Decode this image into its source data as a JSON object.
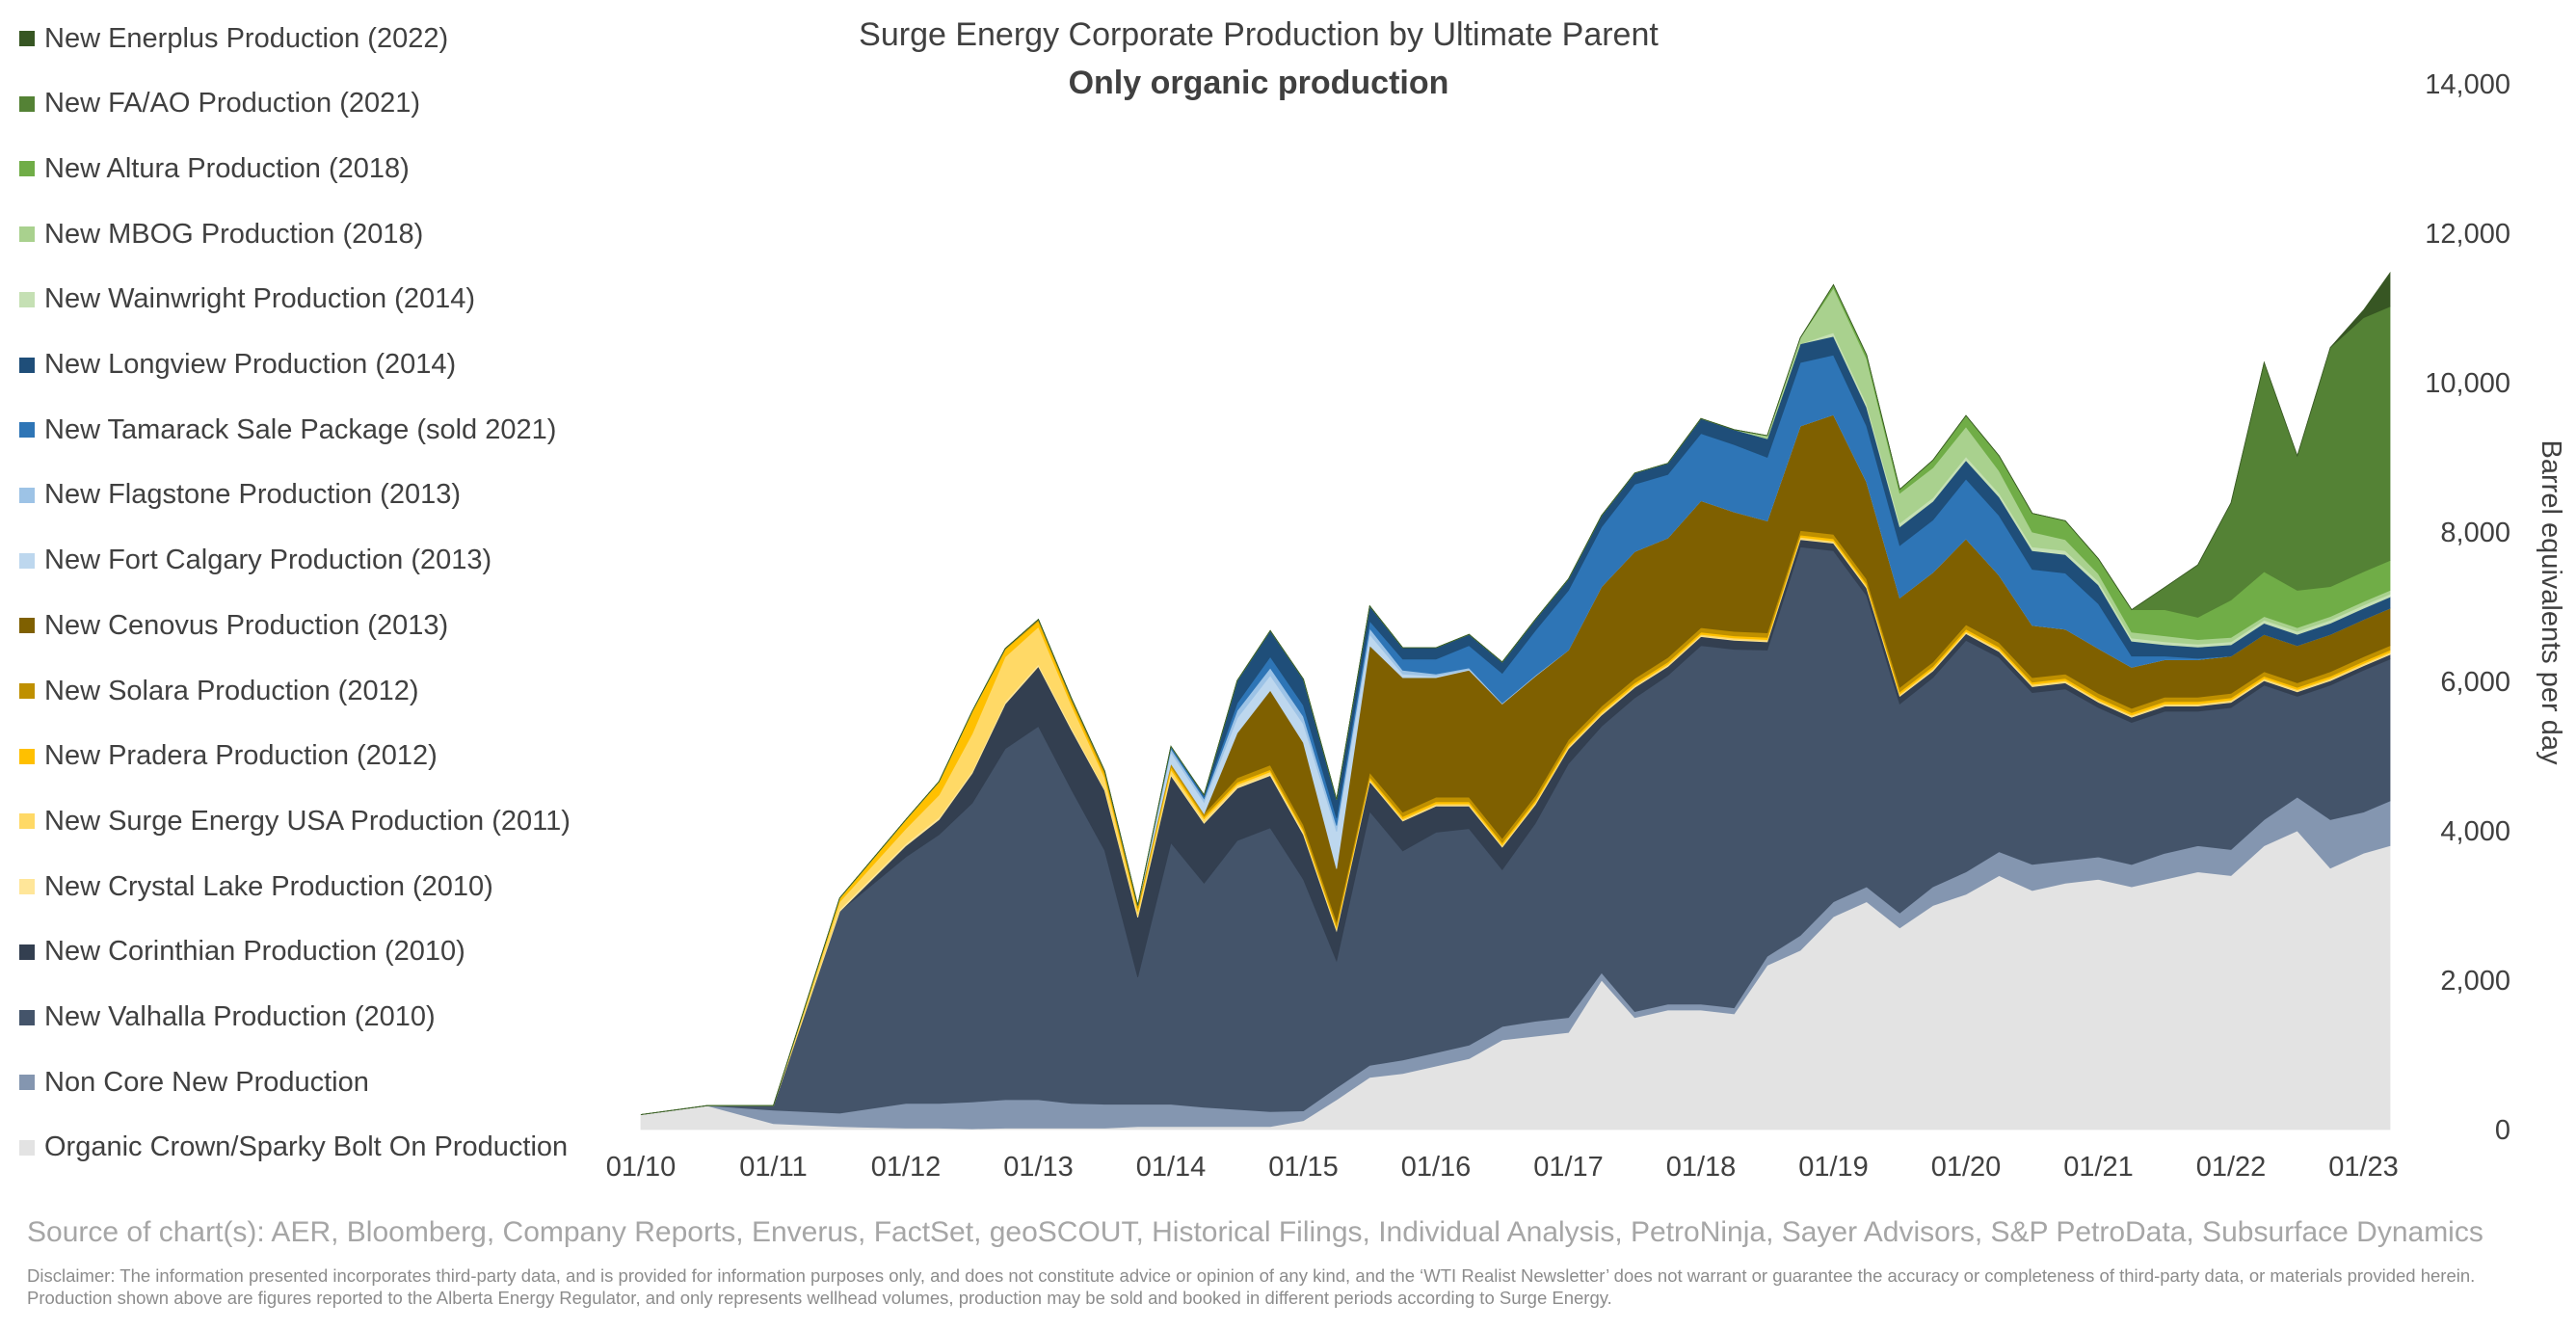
{
  "chart_data": {
    "type": "area",
    "stacked": true,
    "title": "Surge Energy Corporate Production by Ultimate Parent",
    "subtitle": "Only organic production",
    "ylabel": "Barrel equivalents per day",
    "ylim": [
      0,
      14000
    ],
    "yticks": [
      "0",
      "2,000",
      "4,000",
      "6,000",
      "8,000",
      "10,000",
      "12,000",
      "14,000"
    ],
    "yaxis_position": "right",
    "xlim": [
      0,
      13.2
    ],
    "x_categories": [
      "01/10",
      "01/11",
      "01/12",
      "01/13",
      "01/14",
      "01/15",
      "01/16",
      "01/17",
      "01/18",
      "01/19",
      "01/20",
      "01/21",
      "01/22",
      "01/23"
    ],
    "legend_position": "left",
    "x": [
      0,
      0.5,
      1,
      1.5,
      2,
      2.25,
      2.5,
      2.75,
      3,
      3.25,
      3.5,
      3.75,
      4,
      4.25,
      4.5,
      4.75,
      5,
      5.25,
      5.5,
      5.75,
      6,
      6.25,
      6.5,
      6.75,
      7,
      7.25,
      7.5,
      7.75,
      8,
      8.25,
      8.5,
      8.75,
      9,
      9.25,
      9.5,
      9.75,
      10,
      10.25,
      10.5,
      10.75,
      11,
      11.25,
      11.5,
      11.75,
      12,
      12.25,
      12.5,
      12.75,
      13,
      13.2
    ],
    "series": [
      {
        "name": "Organic Crown/Sparky Bolt On Production",
        "color": "#e3e3e3",
        "values": [
          200,
          320,
          80,
          40,
          20,
          20,
          10,
          20,
          20,
          20,
          20,
          40,
          40,
          40,
          40,
          40,
          120,
          400,
          700,
          750,
          850,
          950,
          1200,
          1250,
          1300,
          2000,
          1500,
          1600,
          1600,
          1550,
          2200,
          2400,
          2850,
          3050,
          2700,
          3000,
          3150,
          3400,
          3200,
          3300,
          3350,
          3250,
          3350,
          3450,
          3400,
          3800,
          4000,
          3500,
          3700,
          3800
        ]
      },
      {
        "name": "Non Core New Production",
        "color": "#8496b0",
        "values": [
          0,
          0,
          180,
          180,
          330,
          330,
          360,
          380,
          380,
          330,
          320,
          300,
          300,
          260,
          230,
          200,
          130,
          160,
          160,
          180,
          180,
          180,
          180,
          200,
          200,
          100,
          80,
          80,
          80,
          80,
          120,
          200,
          200,
          200,
          200,
          250,
          300,
          320,
          350,
          300,
          300,
          300,
          350,
          350,
          350,
          350,
          450,
          650,
          550,
          600
        ]
      },
      {
        "name": "New Valhalla Production (2010)",
        "color": "#44546a",
        "values": [
          0,
          0,
          60,
          2700,
          3300,
          3600,
          4000,
          4700,
          5000,
          4200,
          3400,
          1700,
          3500,
          3000,
          3600,
          3800,
          3100,
          1700,
          3400,
          2800,
          2950,
          2900,
          2100,
          2650,
          3400,
          3300,
          4200,
          4400,
          4800,
          4800,
          4100,
          5200,
          4700,
          3900,
          2800,
          2800,
          3100,
          2600,
          2300,
          2300,
          2000,
          1900,
          1900,
          1800,
          1900,
          1800,
          1350,
          1800,
          1900,
          1900
        ]
      },
      {
        "name": "New Corinthian Production (2010)",
        "color": "#333f50",
        "values": [
          0,
          0,
          0,
          0,
          150,
          200,
          400,
          600,
          800,
          800,
          800,
          800,
          900,
          800,
          700,
          700,
          600,
          400,
          400,
          400,
          350,
          300,
          300,
          250,
          200,
          150,
          140,
          120,
          120,
          120,
          110,
          100,
          100,
          100,
          100,
          90,
          90,
          80,
          80,
          80,
          70,
          70,
          70,
          70,
          70,
          60,
          60,
          60,
          60,
          60
        ]
      },
      {
        "name": "New Crystal Lake Production (2010)",
        "color": "#ffe699",
        "values": [
          0,
          0,
          0,
          30,
          30,
          30,
          30,
          30,
          30,
          30,
          20,
          20,
          20,
          20,
          20,
          20,
          20,
          20,
          10,
          10,
          10,
          10,
          10,
          10,
          10,
          10,
          10,
          10,
          10,
          10,
          10,
          10,
          10,
          10,
          10,
          10,
          10,
          10,
          10,
          10,
          10,
          10,
          10,
          10,
          10,
          10,
          10,
          10,
          10,
          10
        ]
      },
      {
        "name": "New Surge Energy USA Production (2011)",
        "color": "#ffd966",
        "values": [
          0,
          0,
          0,
          100,
          200,
          300,
          500,
          600,
          500,
          300,
          150,
          60,
          60,
          40,
          30,
          30,
          20,
          20,
          20,
          20,
          20,
          20,
          20,
          20,
          20,
          20,
          20,
          20,
          20,
          20,
          20,
          20,
          20,
          20,
          20,
          20,
          20,
          20,
          20,
          20,
          20,
          20,
          20,
          20,
          20,
          20,
          20,
          20,
          20,
          20
        ]
      },
      {
        "name": "New Pradera Production (2012)",
        "color": "#ffc000",
        "values": [
          0,
          0,
          0,
          50,
          120,
          180,
          300,
          100,
          80,
          60,
          50,
          40,
          40,
          30,
          30,
          30,
          30,
          30,
          30,
          30,
          30,
          30,
          30,
          30,
          30,
          30,
          30,
          30,
          30,
          30,
          30,
          30,
          30,
          30,
          30,
          30,
          30,
          30,
          30,
          30,
          30,
          30,
          30,
          30,
          30,
          30,
          30,
          30,
          30,
          30
        ]
      },
      {
        "name": "New Solara Production (2012)",
        "color": "#bf9000",
        "values": [
          0,
          0,
          0,
          0,
          0,
          0,
          0,
          10,
          20,
          30,
          40,
          40,
          40,
          40,
          60,
          60,
          60,
          60,
          60,
          60,
          60,
          60,
          60,
          60,
          60,
          60,
          60,
          60,
          60,
          60,
          60,
          60,
          60,
          60,
          60,
          60,
          60,
          60,
          60,
          60,
          60,
          60,
          60,
          60,
          60,
          60,
          60,
          60,
          60,
          60
        ]
      },
      {
        "name": "New Cenovus Production (2013)",
        "color": "#7f6000",
        "values": [
          0,
          0,
          0,
          0,
          0,
          0,
          0,
          0,
          0,
          0,
          0,
          0,
          0,
          0,
          600,
          1000,
          1100,
          700,
          1700,
          1800,
          1600,
          1700,
          1800,
          1600,
          1200,
          1600,
          1700,
          1600,
          1700,
          1600,
          1500,
          1400,
          1600,
          1300,
          1200,
          1200,
          1150,
          900,
          700,
          600,
          600,
          550,
          500,
          500,
          500,
          500,
          500,
          500,
          500,
          500
        ]
      },
      {
        "name": "New Fort Calgary Production (2013)",
        "color": "#bdd7ee",
        "values": [
          0,
          0,
          0,
          0,
          0,
          0,
          0,
          0,
          0,
          0,
          0,
          0,
          150,
          150,
          200,
          200,
          250,
          500,
          150,
          50,
          20,
          10,
          0,
          0,
          0,
          0,
          0,
          0,
          0,
          0,
          0,
          0,
          0,
          0,
          0,
          0,
          0,
          0,
          0,
          0,
          0,
          0,
          0,
          0,
          0,
          0,
          0,
          0,
          0,
          0
        ]
      },
      {
        "name": "New Flagstone Production (2013)",
        "color": "#9dc3e6",
        "values": [
          0,
          0,
          0,
          0,
          0,
          0,
          0,
          0,
          0,
          0,
          0,
          0,
          50,
          50,
          100,
          100,
          100,
          80,
          80,
          50,
          30,
          20,
          10,
          10,
          0,
          0,
          0,
          0,
          0,
          0,
          0,
          0,
          0,
          0,
          0,
          0,
          0,
          0,
          0,
          0,
          0,
          0,
          0,
          0,
          0,
          0,
          0,
          0,
          0,
          0
        ]
      },
      {
        "name": "New Tamarack Sale Package (sold 2021)",
        "color": "#2e75b6",
        "values": [
          0,
          0,
          0,
          0,
          0,
          0,
          0,
          0,
          0,
          0,
          0,
          0,
          30,
          30,
          100,
          150,
          150,
          100,
          100,
          150,
          200,
          300,
          400,
          600,
          800,
          800,
          900,
          850,
          900,
          900,
          850,
          850,
          800,
          750,
          700,
          700,
          800,
          800,
          750,
          750,
          600,
          150,
          50,
          20,
          0,
          0,
          0,
          0,
          0,
          0
        ]
      },
      {
        "name": "New Longview Production  (2014)",
        "color": "#1f4e79",
        "values": [
          0,
          0,
          0,
          0,
          0,
          0,
          0,
          0,
          0,
          0,
          0,
          0,
          0,
          20,
          300,
          350,
          350,
          250,
          200,
          150,
          150,
          150,
          150,
          150,
          150,
          150,
          150,
          150,
          200,
          200,
          250,
          250,
          250,
          250,
          250,
          250,
          250,
          250,
          250,
          250,
          250,
          200,
          150,
          150,
          150,
          150,
          150,
          150,
          150,
          150
        ]
      },
      {
        "name": "New Wainwright Production (2014)",
        "color": "#c5e0b4",
        "values": [
          0,
          0,
          0,
          0,
          0,
          0,
          0,
          0,
          0,
          0,
          0,
          0,
          0,
          0,
          0,
          0,
          0,
          0,
          0,
          0,
          0,
          0,
          0,
          0,
          0,
          0,
          0,
          0,
          0,
          0,
          0,
          0,
          50,
          50,
          50,
          50,
          50,
          50,
          50,
          50,
          50,
          40,
          40,
          40,
          40,
          40,
          40,
          40,
          40,
          40
        ]
      },
      {
        "name": "New MBOG Production (2018)",
        "color": "#a9d18e",
        "values": [
          0,
          0,
          0,
          0,
          0,
          0,
          0,
          0,
          0,
          0,
          0,
          0,
          0,
          0,
          0,
          0,
          0,
          0,
          0,
          0,
          0,
          0,
          0,
          0,
          0,
          0,
          0,
          0,
          0,
          0,
          40,
          80,
          600,
          600,
          400,
          400,
          400,
          300,
          200,
          150,
          100,
          80,
          80,
          60,
          60,
          50,
          50,
          50,
          50,
          50
        ]
      },
      {
        "name": "New Altura Production (2018)",
        "color": "#70ad47",
        "values": [
          0,
          0,
          0,
          0,
          0,
          0,
          0,
          0,
          0,
          0,
          0,
          0,
          0,
          0,
          0,
          0,
          0,
          0,
          0,
          0,
          0,
          0,
          0,
          0,
          0,
          0,
          0,
          0,
          0,
          0,
          0,
          0,
          40,
          50,
          50,
          100,
          150,
          200,
          250,
          250,
          200,
          300,
          350,
          300,
          500,
          600,
          500,
          400,
          400,
          400
        ]
      },
      {
        "name": "New FA/AO Production (2021)",
        "color": "#548235",
        "values": [
          0,
          0,
          0,
          0,
          0,
          0,
          0,
          0,
          0,
          0,
          0,
          0,
          0,
          0,
          0,
          0,
          0,
          0,
          0,
          0,
          0,
          0,
          0,
          0,
          0,
          0,
          0,
          0,
          0,
          0,
          0,
          0,
          0,
          0,
          0,
          0,
          0,
          0,
          0,
          0,
          0,
          0,
          300,
          700,
          1300,
          2800,
          1800,
          3200,
          3400,
          3400
        ]
      },
      {
        "name": "New Enerplus Production (2022)",
        "color": "#375623",
        "values": [
          0,
          0,
          0,
          0,
          0,
          0,
          0,
          0,
          0,
          0,
          0,
          0,
          0,
          0,
          0,
          0,
          0,
          0,
          0,
          0,
          0,
          0,
          0,
          0,
          0,
          0,
          0,
          0,
          0,
          0,
          0,
          0,
          0,
          0,
          0,
          0,
          0,
          0,
          0,
          0,
          0,
          0,
          0,
          0,
          0,
          0,
          0,
          0,
          100,
          450
        ]
      }
    ]
  },
  "legend_items": [
    {
      "label": "New Enerplus Production (2022)",
      "color": "#375623"
    },
    {
      "label": "New FA/AO Production (2021)",
      "color": "#548235"
    },
    {
      "label": "New Altura Production (2018)",
      "color": "#70ad47"
    },
    {
      "label": "New MBOG Production (2018)",
      "color": "#a9d18e"
    },
    {
      "label": "New Wainwright Production (2014)",
      "color": "#c5e0b4"
    },
    {
      "label": "New Longview Production  (2014)",
      "color": "#1f4e79"
    },
    {
      "label": "New Tamarack Sale Package (sold 2021)",
      "color": "#2e75b6"
    },
    {
      "label": "New Flagstone Production (2013)",
      "color": "#9dc3e6"
    },
    {
      "label": "New Fort Calgary Production (2013)",
      "color": "#bdd7ee"
    },
    {
      "label": "New Cenovus Production (2013)",
      "color": "#7f6000"
    },
    {
      "label": "New Solara Production (2012)",
      "color": "#bf9000"
    },
    {
      "label": "New Pradera Production (2012)",
      "color": "#ffc000"
    },
    {
      "label": "New Surge Energy USA Production (2011)",
      "color": "#ffd966"
    },
    {
      "label": "New Crystal Lake Production (2010)",
      "color": "#ffe699"
    },
    {
      "label": "New Corinthian Production (2010)",
      "color": "#333f50"
    },
    {
      "label": "New Valhalla Production (2010)",
      "color": "#44546a"
    },
    {
      "label": "Non Core New Production",
      "color": "#8496b0"
    },
    {
      "label": "Organic Crown/Sparky Bolt On Production",
      "color": "#e3e3e3"
    }
  ],
  "source": "Source of chart(s): AER, Bloomberg, Company Reports, Enverus, FactSet, geoSCOUT, Historical Filings, Individual Analysis, PetroNinja, Sayer Advisors, S&P PetroData, Subsurface Dynamics",
  "disclaimer": "Disclaimer: The information presented incorporates third-party data, and is provided for information purposes only, and does not constitute advice or opinion of any kind, and the ‘WTI Realist Newsletter’ does not warrant or guarantee the accuracy or completeness of third-party data, or materials provided herein. Production shown above are figures reported to the Alberta Energy Regulator, and only represents wellhead volumes, production may be sold and booked in different periods according to Surge Energy."
}
